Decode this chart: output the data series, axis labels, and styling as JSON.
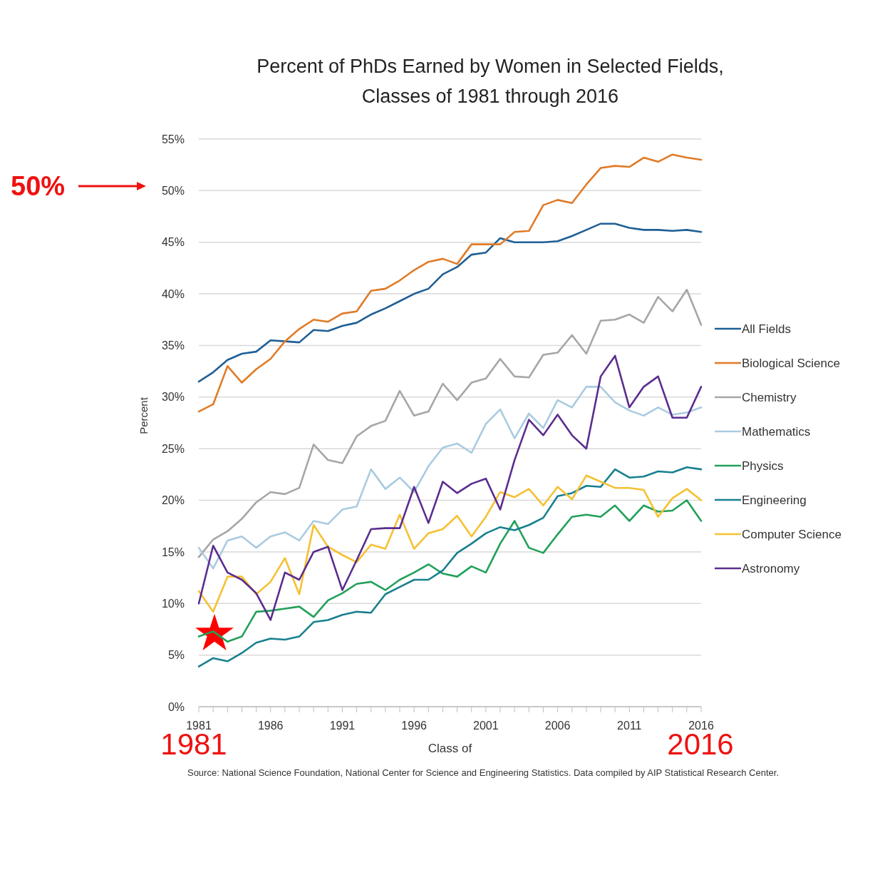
{
  "chart_data": {
    "type": "line",
    "title": "Percent of PhDs Earned by Women in Selected Fields,\nClasses of 1981 through 2016",
    "xlabel": "Class of",
    "ylabel": "Percent",
    "x": [
      1981,
      1982,
      1983,
      1984,
      1985,
      1986,
      1987,
      1988,
      1989,
      1990,
      1991,
      1992,
      1993,
      1994,
      1995,
      1996,
      1997,
      1998,
      1999,
      2000,
      2001,
      2002,
      2003,
      2004,
      2005,
      2006,
      2007,
      2008,
      2009,
      2010,
      2011,
      2012,
      2013,
      2014,
      2015,
      2016
    ],
    "xlim": [
      1981,
      2016
    ],
    "xticks": [
      1981,
      1986,
      1991,
      1996,
      2001,
      2006,
      2011,
      2016
    ],
    "ylim": [
      0,
      55
    ],
    "yticks": [
      {
        "value": 0,
        "label": "0%"
      },
      {
        "value": 5,
        "label": "5%"
      },
      {
        "value": 10,
        "label": "10%"
      },
      {
        "value": 15,
        "label": "15%"
      },
      {
        "value": 20,
        "label": "20%"
      },
      {
        "value": 25,
        "label": "25%"
      },
      {
        "value": 30,
        "label": "30%"
      },
      {
        "value": 35,
        "label": "35%"
      },
      {
        "value": 40,
        "label": "40%"
      },
      {
        "value": 45,
        "label": "45%"
      },
      {
        "value": 50,
        "label": "50%"
      },
      {
        "value": 55,
        "label": "55%"
      }
    ],
    "grid": "y",
    "legend": "right",
    "marker": "none",
    "line_style": "solid",
    "series": [
      {
        "name": "All Fields",
        "color": "#1f5f95",
        "values": [
          31.5,
          32.4,
          33.6,
          34.2,
          34.4,
          35.5,
          35.4,
          35.3,
          36.5,
          36.4,
          36.9,
          37.2,
          38.0,
          38.6,
          39.3,
          40.0,
          40.5,
          41.9,
          42.6,
          43.8,
          44.0,
          45.4,
          45.0,
          45.0,
          45.0,
          45.1,
          45.6,
          46.2,
          46.8,
          46.8,
          46.4,
          46.2,
          46.2,
          46.1,
          46.2,
          46.0
        ]
      },
      {
        "name": "Biological Science",
        "color": "#e07b27",
        "values": [
          28.6,
          29.3,
          33.0,
          31.4,
          32.7,
          33.7,
          35.4,
          36.6,
          37.5,
          37.3,
          38.1,
          38.3,
          40.3,
          40.5,
          41.3,
          42.3,
          43.1,
          43.4,
          42.9,
          44.8,
          44.8,
          44.8,
          46.0,
          46.1,
          48.6,
          49.1,
          48.8,
          50.6,
          52.2,
          52.4,
          52.3,
          53.2,
          52.8,
          53.5,
          53.2,
          53.0
        ]
      },
      {
        "name": "Chemistry",
        "color": "#a6a6a6",
        "values": [
          14.5,
          16.2,
          17.0,
          18.2,
          19.8,
          20.8,
          20.6,
          21.2,
          25.4,
          23.9,
          23.6,
          26.2,
          27.2,
          27.7,
          30.6,
          28.2,
          28.6,
          31.3,
          29.7,
          31.4,
          31.8,
          33.7,
          32.0,
          31.9,
          34.1,
          34.3,
          36.0,
          34.2,
          37.4,
          37.5,
          38.0,
          37.2,
          39.7,
          38.3,
          40.4,
          37.0
        ]
      },
      {
        "name": "Mathematics",
        "color": "#a9cbe0",
        "values": [
          15.4,
          13.4,
          16.1,
          16.5,
          15.4,
          16.5,
          16.9,
          16.1,
          18.0,
          17.7,
          19.1,
          19.4,
          23.0,
          21.1,
          22.2,
          20.8,
          23.3,
          25.1,
          25.5,
          24.6,
          27.4,
          28.8,
          26.0,
          28.4,
          27.0,
          29.7,
          29.0,
          31.0,
          31.0,
          29.5,
          28.7,
          28.2,
          29.0,
          28.3,
          28.5,
          29.0
        ]
      },
      {
        "name": "Physics",
        "color": "#22a05a",
        "values": [
          6.8,
          7.3,
          6.3,
          6.8,
          9.2,
          9.3,
          9.5,
          9.7,
          8.7,
          10.3,
          11.0,
          11.9,
          12.1,
          11.3,
          12.3,
          13.0,
          13.8,
          12.9,
          12.6,
          13.6,
          13.0,
          15.8,
          18.0,
          15.4,
          14.9,
          16.7,
          18.4,
          18.6,
          18.4,
          19.5,
          18.0,
          19.5,
          18.9,
          19.0,
          20.0,
          18.0
        ]
      },
      {
        "name": "Engineering",
        "color": "#18808f",
        "values": [
          3.9,
          4.7,
          4.4,
          5.2,
          6.2,
          6.6,
          6.5,
          6.8,
          8.2,
          8.4,
          8.9,
          9.2,
          9.1,
          10.9,
          11.6,
          12.3,
          12.3,
          13.2,
          14.9,
          15.8,
          16.8,
          17.4,
          17.1,
          17.6,
          18.3,
          20.4,
          20.7,
          21.4,
          21.3,
          23.0,
          22.2,
          22.3,
          22.8,
          22.7,
          23.2,
          23.0
        ]
      },
      {
        "name": "Computer Science",
        "color": "#f5c132",
        "values": [
          11.2,
          9.2,
          12.6,
          12.6,
          10.9,
          12.1,
          14.4,
          10.9,
          17.6,
          15.5,
          14.7,
          14.0,
          15.7,
          15.3,
          18.6,
          15.3,
          16.8,
          17.2,
          18.5,
          16.5,
          18.4,
          20.8,
          20.3,
          21.1,
          19.5,
          21.3,
          20.1,
          22.4,
          21.8,
          21.2,
          21.2,
          21.0,
          18.4,
          20.2,
          21.1,
          20.0
        ]
      },
      {
        "name": "Astronomy",
        "color": "#5b2d8e",
        "values": [
          10.0,
          15.6,
          13.0,
          12.3,
          11.0,
          8.4,
          13.0,
          12.3,
          15.0,
          15.5,
          11.3,
          14.2,
          17.2,
          17.3,
          17.3,
          21.3,
          17.8,
          21.8,
          20.7,
          21.6,
          22.1,
          19.1,
          23.9,
          27.8,
          26.3,
          28.3,
          26.3,
          25.0,
          32.0,
          34.0,
          29.0,
          31.0,
          32.0,
          28.0,
          28.0,
          31.0
        ]
      }
    ],
    "annotations": [
      "50%",
      "1981",
      "2016",
      "Source: National Science Foundation, National Center for Science and Engineering Statistics.  Data compiled by AIP Statistical Research Center."
    ]
  }
}
